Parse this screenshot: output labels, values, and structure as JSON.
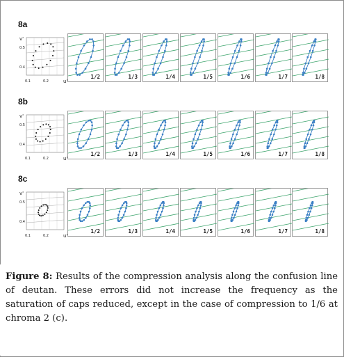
{
  "sections": [
    {
      "label": "8a",
      "ref_axes": {
        "y_label": "v'",
        "x_label": "u'",
        "ticks_x": [
          "0.1",
          "0.2"
        ],
        "ticks_y": [
          "0.5",
          "0.4"
        ]
      },
      "panels": [
        "1/2",
        "1/3",
        "1/4",
        "1/5",
        "1/6",
        "1/7",
        "1/8"
      ]
    },
    {
      "label": "8b",
      "ref_axes": {
        "y_label": "v'",
        "x_label": "u'",
        "ticks_x": [
          "0.1",
          "0.2"
        ],
        "ticks_y": [
          "0.5",
          "0.4"
        ]
      },
      "panels": [
        "1/2",
        "1/3",
        "1/4",
        "1/5",
        "1/6",
        "1/7",
        "1/8"
      ]
    },
    {
      "label": "8c",
      "ref_axes": {
        "y_label": "v'",
        "x_label": "u'",
        "ticks_x": [
          "0.1",
          "0.2"
        ],
        "ticks_y": [
          "0.5",
          "0.4"
        ]
      },
      "panels": [
        "1/2",
        "1/3",
        "1/4",
        "1/5",
        "1/6",
        "1/7",
        "1/8"
      ]
    }
  ],
  "colors": {
    "confusion_line": "#3aa36a",
    "points": "#3a7fc4",
    "grid": "#7a7a7a"
  },
  "caption": {
    "prefix": "Figure 8:",
    "text": " Results of the compression analysis along the confusion line of deutan. These errors did not increase the frequency as the saturation of caps reduced, except in the case of compression to 1/6 at chroma 2 (c)."
  }
}
